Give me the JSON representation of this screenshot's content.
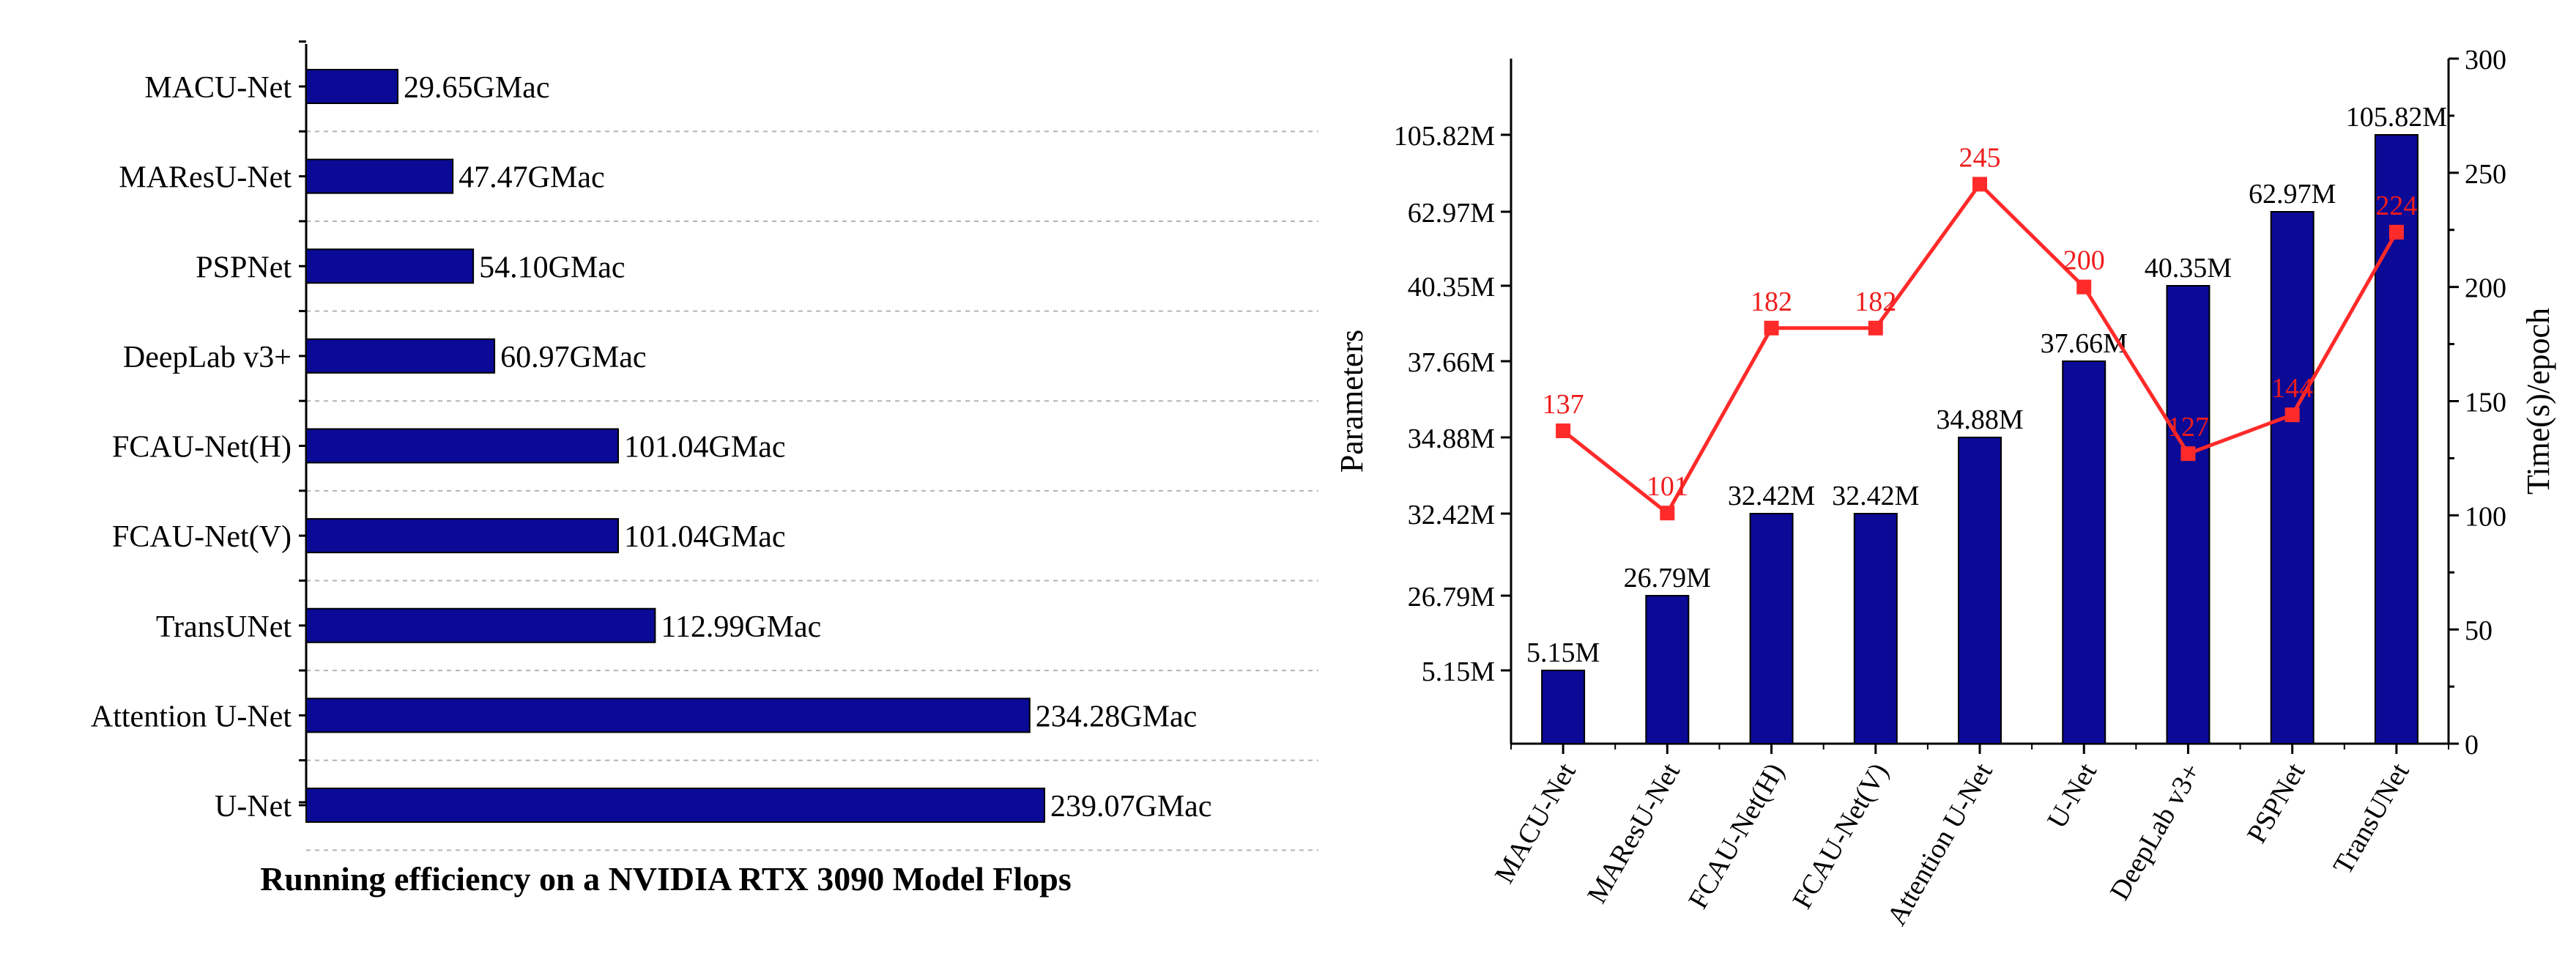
{
  "caption": "Running efficiency on a NVIDIA RTX 3090 Model Flops",
  "colors": {
    "bar": "#0a0a96",
    "line": "#ff2a2a",
    "label_red": "#ee1c1c",
    "grid": "#b4b4b4",
    "axis": "#000000"
  },
  "chart_data": [
    {
      "type": "bar",
      "orientation": "horizontal",
      "title": "",
      "categories": [
        "MACU-Net",
        "MAResU-Net",
        "PSPNet",
        "DeepLab v3+",
        "FCAU-Net(H)",
        "FCAU-Net(V)",
        "TransUNet",
        "Attention U-Net",
        "U-Net"
      ],
      "values": [
        29.65,
        47.47,
        54.1,
        60.97,
        101.04,
        101.04,
        112.99,
        234.28,
        239.07
      ],
      "value_labels": [
        "29.65GMac",
        "47.47GMac",
        "54.10GMac",
        "60.97GMac",
        "101.04GMac",
        "101.04GMac",
        "112.99GMac",
        "234.28GMac",
        "239.07GMac"
      ],
      "unit": "GMac",
      "xlim": [
        0,
        320
      ],
      "grid": "dashed horizontal"
    },
    {
      "type": "bar+line",
      "categories": [
        "MACU-Net",
        "MAResU-Net",
        "FCAU-Net(H)",
        "FCAU-Net(V)",
        "Attention U-Net",
        "U-Net",
        "DeepLab v3+",
        "PSPNet",
        "TransUNet"
      ],
      "ylabel": "Parameters",
      "y2label": "Time(s)/epoch",
      "y_ticks": [
        "5.15M",
        "26.79M",
        "32.42M",
        "34.88M",
        "37.66M",
        "40.35M",
        "62.97M",
        "105.82M"
      ],
      "y_scale": "categorical (evenly spaced parameter levels)",
      "bars": {
        "name": "Parameters",
        "values": [
          5.15,
          26.79,
          32.42,
          32.42,
          34.88,
          37.66,
          40.35,
          62.97,
          105.82
        ],
        "labels": [
          "5.15M",
          "26.79M",
          "32.42M",
          "32.42M",
          "34.88M",
          "37.66M",
          "40.35M",
          "62.97M",
          "105.82M"
        ]
      },
      "line": {
        "name": "Time(s)/epoch",
        "values": [
          137,
          101,
          182,
          182,
          245,
          200,
          127,
          144,
          224
        ],
        "labels": [
          "137",
          "101",
          "182",
          "182",
          "245",
          "200",
          "127",
          "144",
          "224"
        ]
      },
      "y2lim": [
        0,
        300
      ],
      "y2_ticks": [
        "0",
        "50",
        "100",
        "150",
        "200",
        "250",
        "300"
      ]
    }
  ]
}
